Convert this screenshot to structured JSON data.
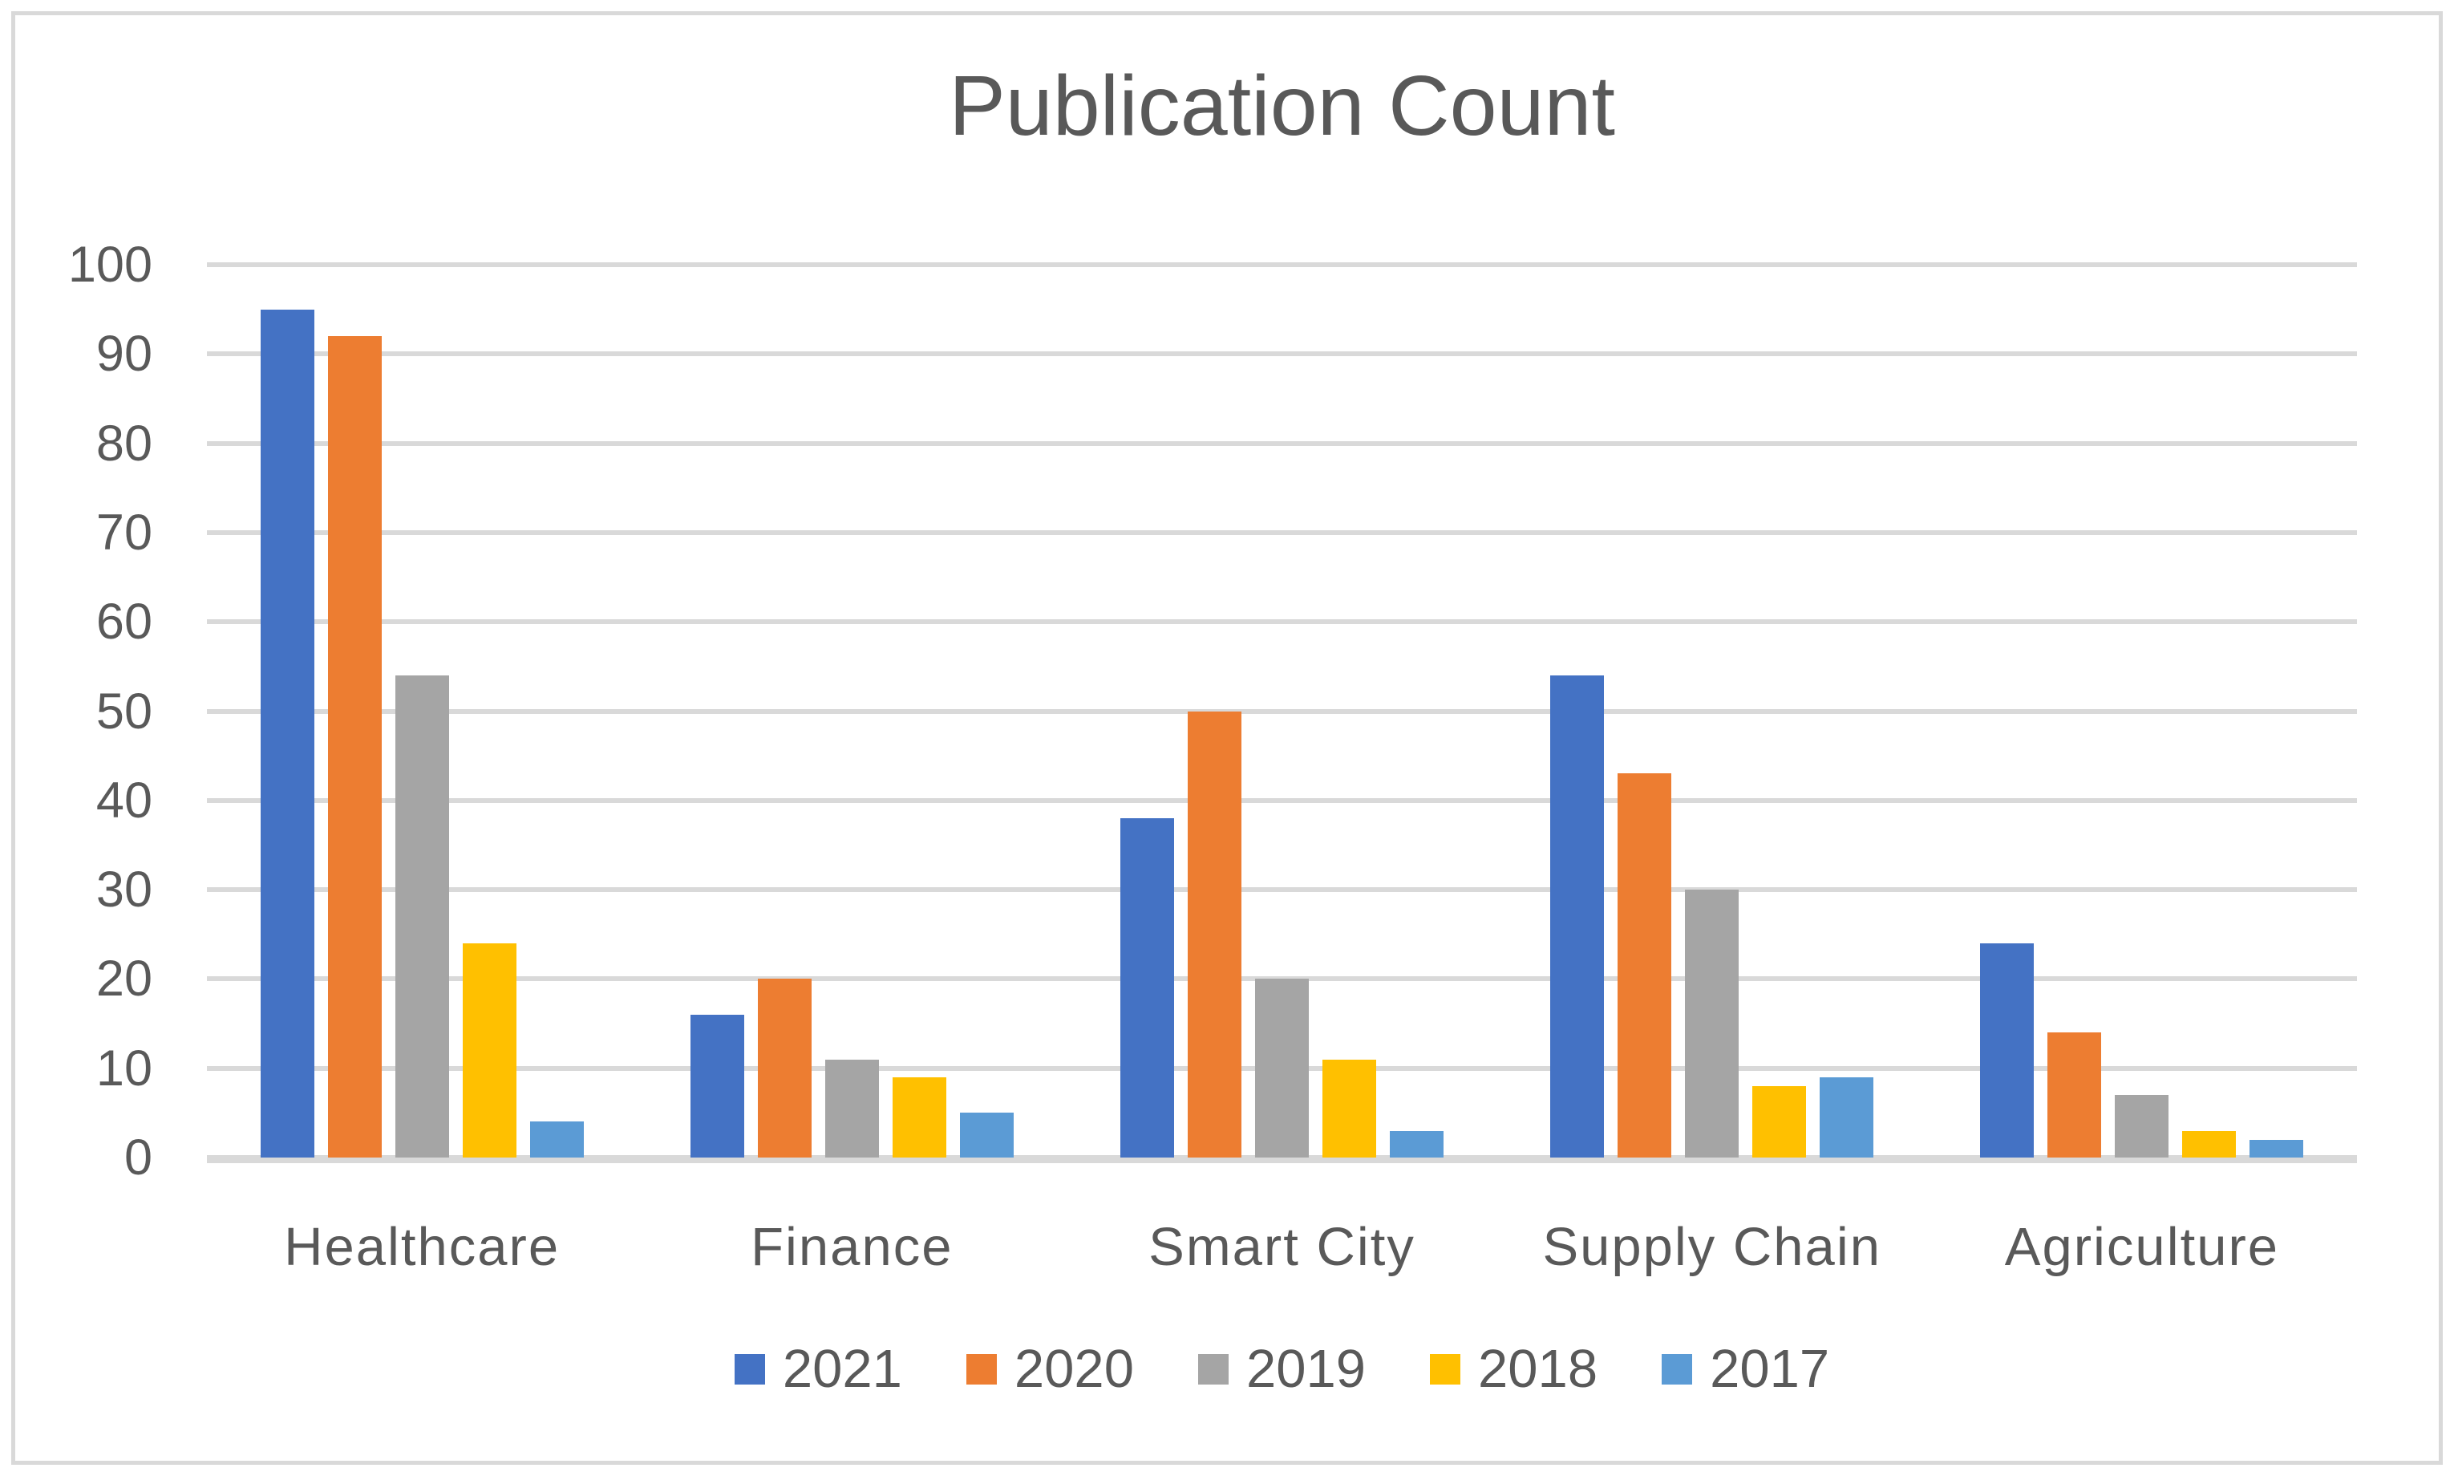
{
  "chart_data": {
    "type": "bar",
    "title": "Publication Count",
    "categories": [
      "Healthcare",
      "Finance",
      "Smart City",
      "Supply Chain",
      "Agriculture"
    ],
    "series": [
      {
        "name": "2021",
        "color": "#4472C4",
        "values": [
          95,
          16,
          38,
          54,
          24
        ]
      },
      {
        "name": "2020",
        "color": "#ED7D31",
        "values": [
          92,
          20,
          50,
          43,
          14
        ]
      },
      {
        "name": "2019",
        "color": "#A5A5A5",
        "values": [
          54,
          11,
          20,
          30,
          7
        ]
      },
      {
        "name": "2018",
        "color": "#FFC000",
        "values": [
          24,
          9,
          11,
          8,
          3
        ]
      },
      {
        "name": "2017",
        "color": "#5B9BD5",
        "values": [
          4,
          5,
          3,
          9,
          2
        ]
      }
    ],
    "ylim": [
      0,
      100
    ],
    "ytick_labels": [
      "0",
      "10",
      "20",
      "30",
      "40",
      "50",
      "60",
      "70",
      "80",
      "90",
      "100"
    ],
    "grid": true,
    "gridline_color": "#D9D9D9",
    "axis_line_color": "#D9D9D9",
    "text_color": "#595959",
    "legend_position": "bottom"
  }
}
